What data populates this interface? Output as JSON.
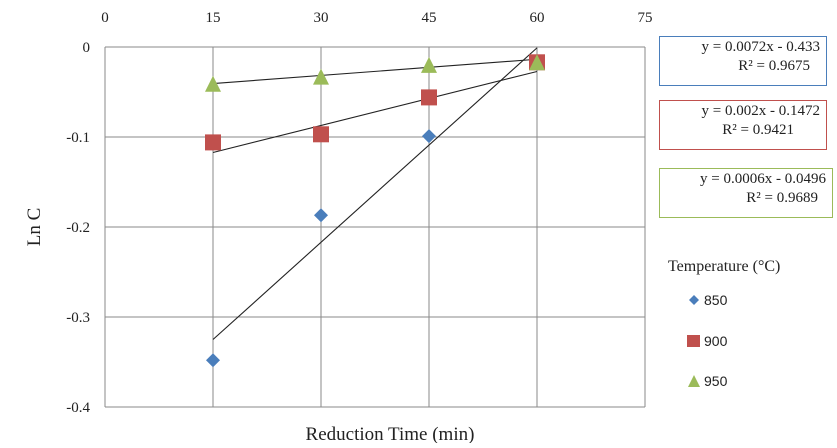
{
  "chart_data": {
    "type": "scatter",
    "xlabel": "Reduction Time (min)",
    "ylabel": "Ln C",
    "xlim": [
      0,
      75
    ],
    "ylim": [
      -0.4,
      0
    ],
    "x_ticks": [
      "0",
      "15",
      "30",
      "45",
      "60",
      "75"
    ],
    "y_ticks": [
      "0",
      "-0.1",
      "-0.2",
      "-0.3",
      "-0.4"
    ],
    "x_axis_position": "top",
    "grid": "vertical and horizontal",
    "legend_title": "Temperature (°C)",
    "legend_position": "right",
    "series": [
      {
        "name": "850",
        "marker": "diamond",
        "color": "#4a7ebb",
        "x": [
          15,
          30,
          45,
          60
        ],
        "y": [
          -0.348,
          -0.187,
          -0.099,
          -0.019
        ],
        "trendline": {
          "slope": 0.0072,
          "intercept": -0.433,
          "equation": "y = 0.0072x - 0.433",
          "r2": "R² = 0.9675",
          "box_color": "#4a7ebb"
        }
      },
      {
        "name": "900",
        "marker": "square",
        "color": "#c0504d",
        "x": [
          15,
          30,
          45,
          60
        ],
        "y": [
          -0.106,
          -0.097,
          -0.056,
          -0.017
        ],
        "trendline": {
          "slope": 0.002,
          "intercept": -0.1472,
          "equation": "y = 0.002x - 0.1472",
          "r2": "R² = 0.9421",
          "box_color": "#c0504d"
        }
      },
      {
        "name": "950",
        "marker": "triangle",
        "color": "#9bbb59",
        "x": [
          15,
          30,
          45,
          60
        ],
        "y": [
          -0.042,
          -0.034,
          -0.021,
          -0.018
        ],
        "trendline": {
          "slope": 0.0006,
          "intercept": -0.0496,
          "equation": "y = 0.0006x - 0.0496",
          "r2": "R² = 0.9689",
          "box_color": "#9bbb59"
        }
      }
    ]
  }
}
